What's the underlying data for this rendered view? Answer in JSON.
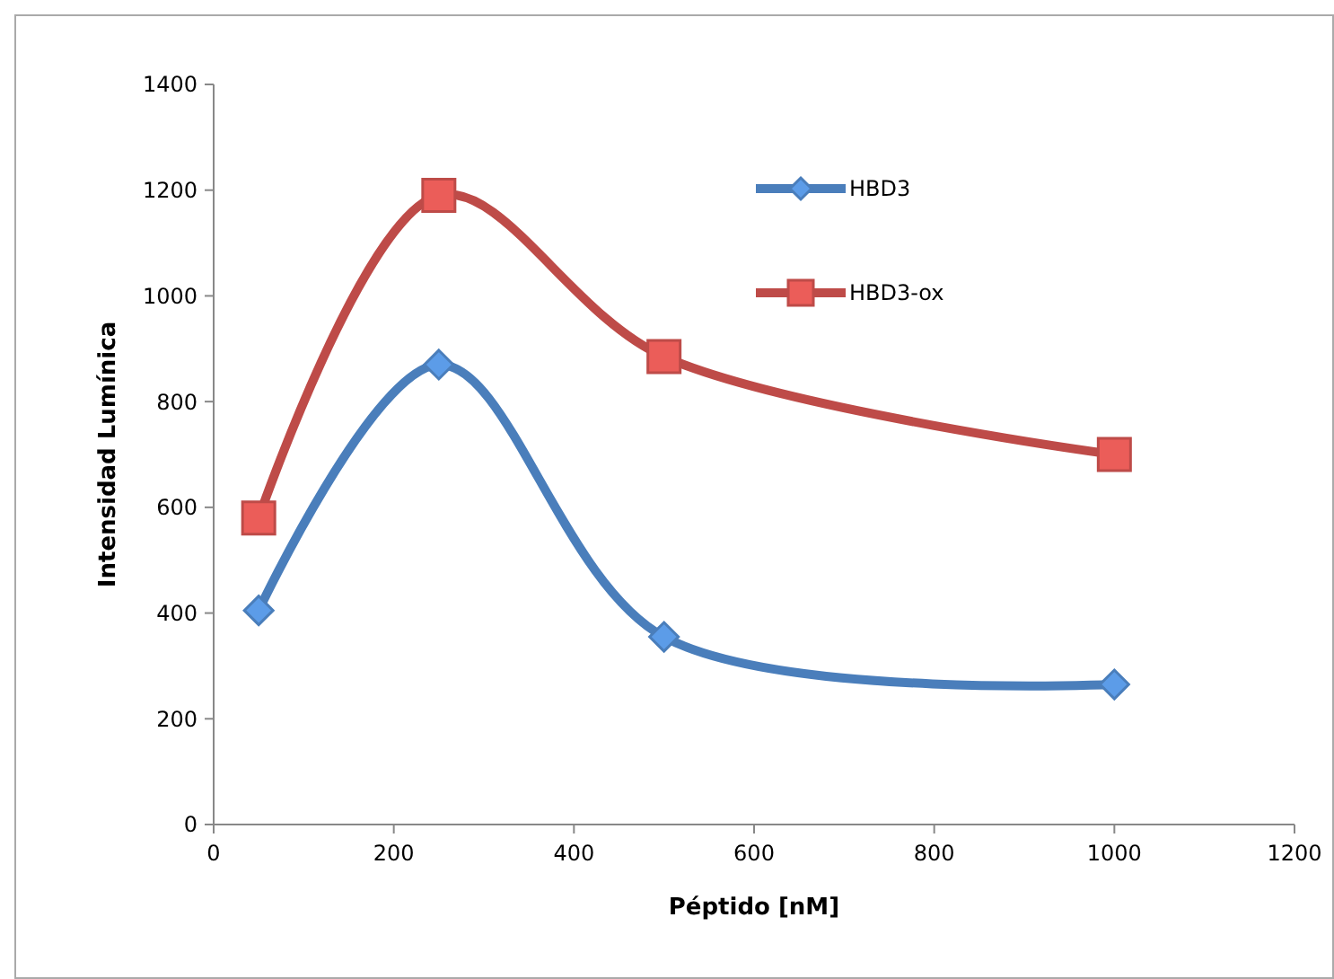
{
  "chart_data": {
    "type": "line",
    "xlabel": "Péptido [nM]",
    "ylabel": "Intensidad Lumínica",
    "x": [
      50,
      250,
      500,
      1000
    ],
    "series": [
      {
        "name": "HBD3",
        "color": "#4a7ebb",
        "marker": "diamond",
        "values": [
          405,
          870,
          355,
          265
        ]
      },
      {
        "name": "HBD3-ox",
        "color": "#be4b48",
        "marker": "square",
        "values": [
          580,
          1190,
          885,
          700
        ]
      }
    ],
    "xlim": [
      0,
      1200
    ],
    "xticks": [
      0,
      200,
      400,
      600,
      800,
      1000,
      1200
    ],
    "ylim": [
      0,
      1400
    ],
    "yticks": [
      0,
      200,
      400,
      600,
      800,
      1000,
      1200,
      1400
    ],
    "grid": false,
    "legend": "top right"
  }
}
